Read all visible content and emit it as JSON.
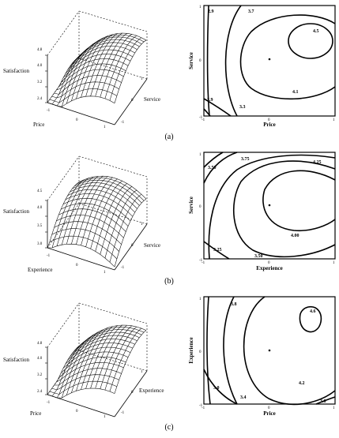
{
  "figure": {
    "panels": [
      {
        "caption": "(a)",
        "surface": {
          "z_label": "Satisfaction",
          "x_label": "Price",
          "y_label": "Service",
          "z_ticks": [
            "4.8",
            "4.0",
            "3.2",
            "2.4"
          ],
          "x_ticks": [
            "-1",
            "0",
            "1"
          ],
          "y_ticks": [
            "-1",
            "0",
            "1"
          ]
        },
        "contour": {
          "x_label": "Price",
          "y_label": "Service",
          "x_ticks": [
            "-1",
            "0",
            "1"
          ],
          "y_ticks": [
            "-1",
            "0",
            "1"
          ],
          "levels": [
            "2.9",
            "3.7",
            "4.5",
            "4.1",
            "2.9",
            "3.3"
          ]
        }
      },
      {
        "caption": "(b)",
        "surface": {
          "z_label": "Satisfaction",
          "x_label": "Experience",
          "y_label": "Service",
          "z_ticks": [
            "4.5",
            "4.0",
            "3.5",
            "3.0"
          ],
          "x_ticks": [
            "-1",
            "0",
            "1"
          ],
          "y_ticks": [
            "-1",
            "0",
            "1"
          ]
        },
        "contour": {
          "x_label": "Experience",
          "y_label": "Service",
          "x_ticks": [
            "-1",
            "0",
            "1"
          ],
          "y_ticks": [
            "-1",
            "0",
            "1"
          ],
          "levels": [
            "3.50",
            "3.75",
            "4.25",
            "4.00",
            "3.25",
            "3.50"
          ]
        }
      },
      {
        "caption": "(c)",
        "surface": {
          "z_label": "Satisfaction",
          "x_label": "Price",
          "y_label": "Experience",
          "z_ticks": [
            "4.8",
            "4.0",
            "3.2",
            "2.4"
          ],
          "x_ticks": [
            "-1",
            "0",
            "1"
          ],
          "y_ticks": [
            "-1",
            "0",
            "1"
          ]
        },
        "contour": {
          "x_label": "Price",
          "y_label": "Experience",
          "x_ticks": [
            "-1",
            "0",
            "1"
          ],
          "y_ticks": [
            "-1",
            "0",
            "1"
          ],
          "levels": [
            "3.8",
            "4.6",
            "4.2",
            "3.0",
            "3.4",
            "3.8"
          ]
        }
      }
    ]
  }
}
